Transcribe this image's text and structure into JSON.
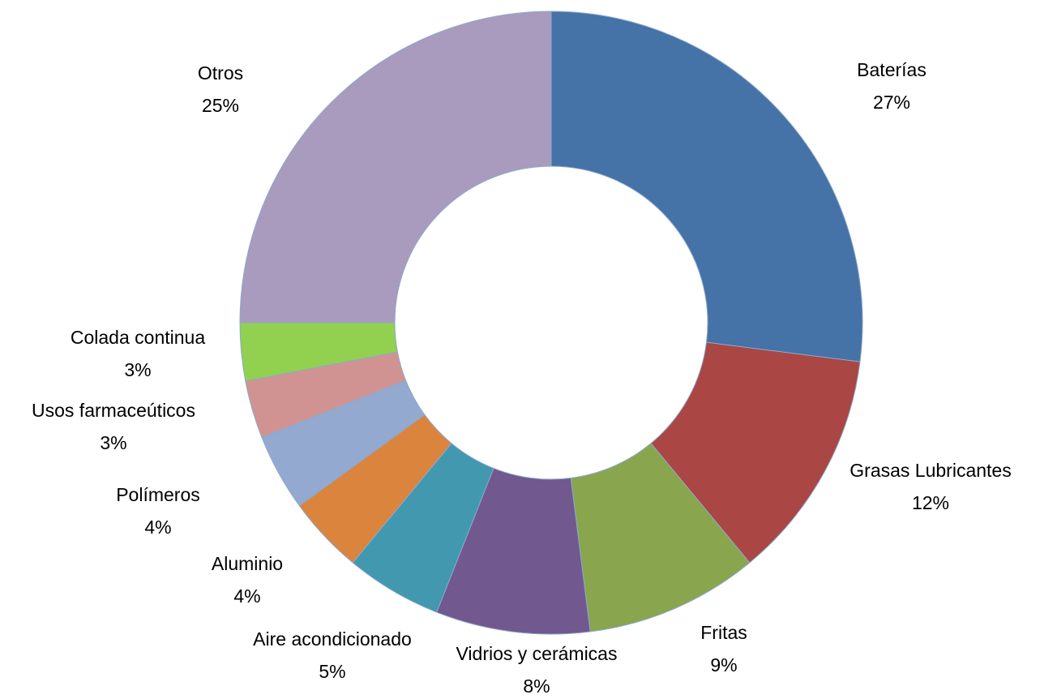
{
  "chart_data": {
    "type": "donut",
    "categories": [
      "Baterías",
      "Grasas Lubricantes",
      "Fritas",
      "Vidrios y cerámicas",
      "Aire acondicionado",
      "Aluminio",
      "Polímeros",
      "Usos farmaceúticos",
      "Colada continua",
      "Otros"
    ],
    "values": [
      27,
      12,
      9,
      8,
      5,
      4,
      4,
      3,
      3,
      25
    ],
    "value_labels": [
      "27%",
      "12%",
      "9%",
      "8%",
      "5%",
      "4%",
      "4%",
      "3%",
      "3%",
      "25%"
    ],
    "colors": [
      "#4572a7",
      "#aa4643",
      "#89a54e",
      "#71588f",
      "#4198af",
      "#db843d",
      "#93a9cf",
      "#d19392",
      "#92d050",
      "#a99bbd"
    ]
  }
}
